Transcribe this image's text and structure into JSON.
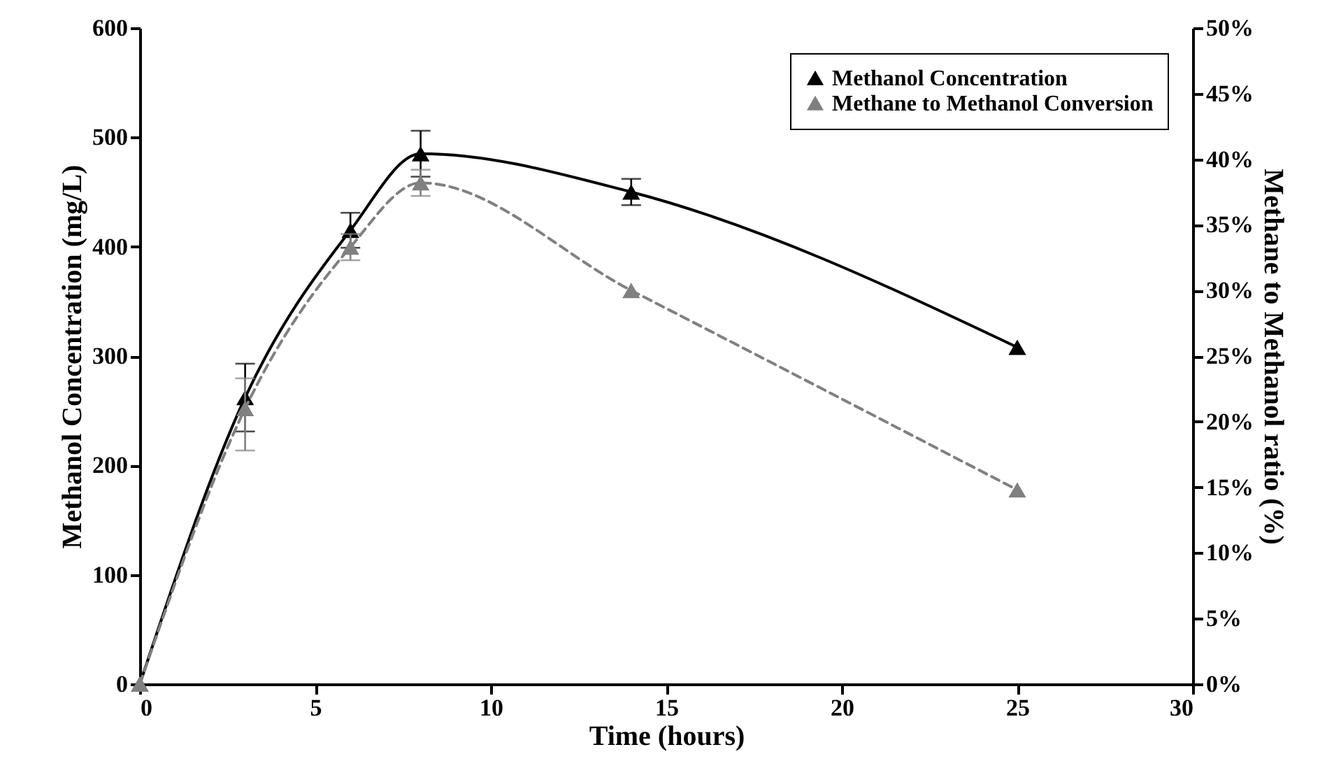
{
  "chart_data": {
    "type": "line",
    "xlabel": "Time (hours)",
    "ylabel": "Methanol Concentration (mg/L)",
    "y2label": "Methane to Methanol ratio (%)",
    "x": [
      0,
      3,
      6,
      8,
      14,
      25
    ],
    "series": [
      {
        "name": "Methanol Concentration",
        "color": "#000000",
        "line_style": "solid",
        "values": [
          0,
          262,
          415,
          485,
          450,
          308
        ],
        "errors": [
          null,
          31,
          16,
          21,
          12,
          null
        ]
      },
      {
        "name": "Methane to Methanol Conversion",
        "color": "#808080",
        "line_style": "dashed",
        "axis": "y2",
        "values": [
          0,
          21,
          33.3,
          38.2,
          30,
          14.8
        ],
        "errors": [
          null,
          [
            17.8,
            23.3
          ],
          1,
          1,
          null,
          null
        ]
      }
    ],
    "xlim": [
      0,
      30
    ],
    "xticks": [
      0,
      5,
      10,
      15,
      20,
      25,
      30
    ],
    "ylim": [
      0,
      600
    ],
    "yticks": [
      0,
      100,
      200,
      300,
      400,
      500,
      600
    ],
    "y2lim": [
      0,
      50
    ],
    "y2ticks": [
      {
        "value": 0,
        "label": "0%"
      },
      {
        "value": 5,
        "label": "5%"
      },
      {
        "value": 10,
        "label": "10%"
      },
      {
        "value": 15,
        "label": "15%"
      },
      {
        "value": 20,
        "label": "20%"
      },
      {
        "value": 25,
        "label": "25%"
      },
      {
        "value": 30,
        "label": "30%"
      },
      {
        "value": 35,
        "label": "35%"
      },
      {
        "value": 40,
        "label": "40%"
      },
      {
        "value": 45,
        "label": "45%"
      },
      {
        "value": 50,
        "label": "50%"
      }
    ],
    "marker": "triangle",
    "legend": "top right",
    "grid": false
  }
}
